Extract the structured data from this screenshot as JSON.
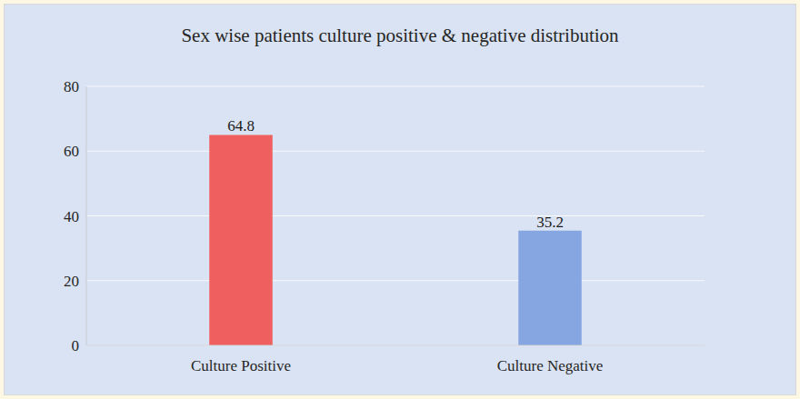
{
  "chart_data": {
    "type": "bar",
    "title": "Sex wise patients culture positive & negative distribution",
    "categories": [
      "Culture Positive",
      "Culture Negative"
    ],
    "values": [
      64.8,
      35.2
    ],
    "colors": [
      "#f05f5f",
      "#86a6e2"
    ],
    "ylim": [
      0,
      80
    ],
    "yticks": [
      0,
      20,
      40,
      60,
      80
    ],
    "grid": true,
    "data_labels": true
  }
}
